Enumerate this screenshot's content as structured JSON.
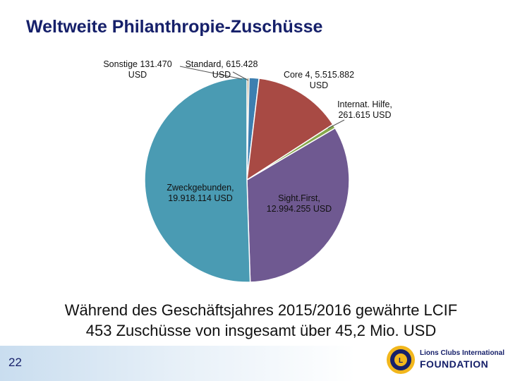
{
  "slide": {
    "title": "Weltweite Philanthropie-Zuschüsse",
    "caption_line1": "Während des Geschäftsjahres 2015/2016 gewährte LCIF",
    "caption_line2": "453 Zuschüsse von insgesamt über 45,2 Mio. USD",
    "page_number": "22",
    "logo_line1": "Lions Clubs International",
    "logo_line2": "FOUNDATION"
  },
  "chart_data": {
    "type": "pie",
    "title": "",
    "slices": [
      {
        "name": "Sonstige",
        "value": 131470,
        "label_lines": [
          "Sonstige 131.470",
          "USD"
        ],
        "color": "#b5a17a"
      },
      {
        "name": "Standard",
        "value": 615428,
        "label_lines": [
          "Standard, 615.428",
          "USD"
        ],
        "color": "#3d7fb0"
      },
      {
        "name": "Core 4",
        "value": 5515882,
        "label_lines": [
          "Core 4, 5.515.882",
          "USD"
        ],
        "color": "#a84a44"
      },
      {
        "name": "Internat. Hilfe",
        "value": 261615,
        "label_lines": [
          "Internat. Hilfe,",
          "261.615 USD"
        ],
        "color": "#86a84c"
      },
      {
        "name": "SightFirst",
        "value": 12994255,
        "label_lines": [
          "Sight.First,",
          "12.994.255 USD"
        ],
        "color": "#6f5991"
      },
      {
        "name": "Zweckgebunden",
        "value": 19918114,
        "label_lines": [
          "Zweckgebunden,",
          "19.918.114 USD"
        ],
        "color": "#4a9bb3"
      }
    ]
  }
}
